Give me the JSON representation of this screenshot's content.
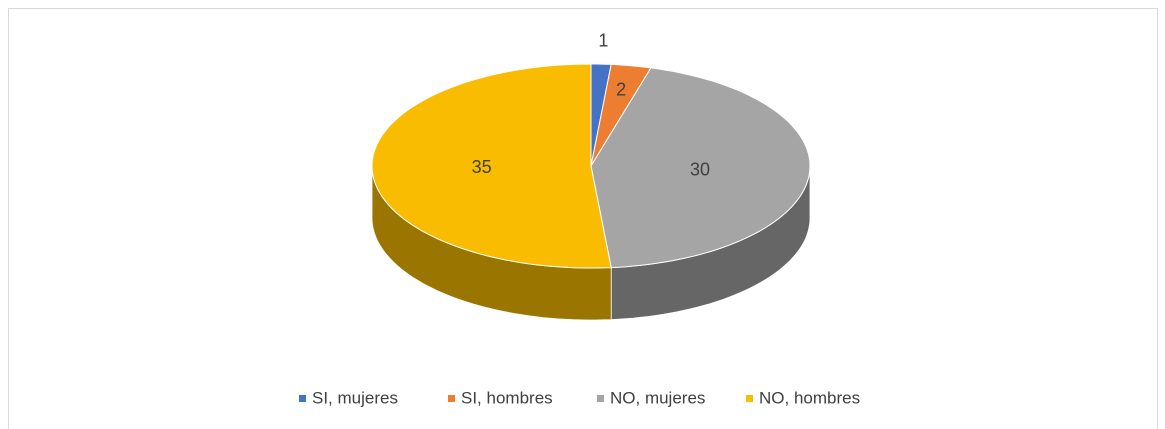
{
  "chart_data": {
    "type": "pie",
    "categories": [
      "SI, mujeres",
      "SI, hombres",
      "NO, mujeres",
      "NO, hombres"
    ],
    "values": [
      1,
      2,
      30,
      35
    ],
    "colors": [
      "#4472c4",
      "#ed7d31",
      "#a5a5a5",
      "#f9bc00"
    ],
    "legend": "bottom"
  }
}
